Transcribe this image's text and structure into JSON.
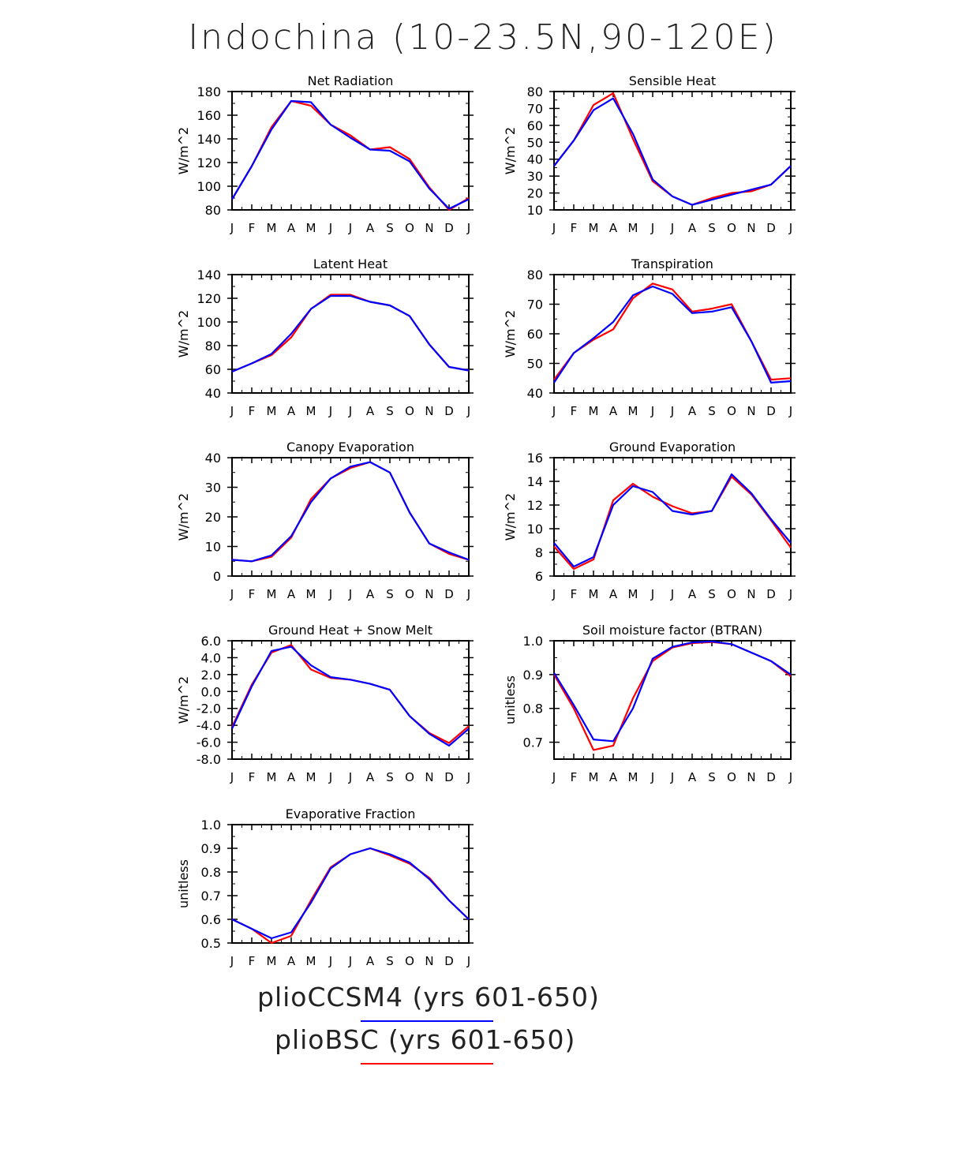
{
  "title": "Indochina (10-23.5N,90-120E)",
  "colors": {
    "pliocbsc": "#ff0000",
    "plioccsm4": "#0000ff"
  },
  "legend": [
    {
      "label": "plioCCSM4 (yrs 601-650)",
      "color": "#0000ff"
    },
    {
      "label": "plioBSC (yrs 601-650)",
      "color": "#ff0000"
    }
  ],
  "chart_data": [
    {
      "type": "line",
      "title": "Net Radiation",
      "ylabel": "W/m^2",
      "x": [
        "J",
        "F",
        "M",
        "A",
        "M",
        "J",
        "J",
        "A",
        "S",
        "O",
        "N",
        "D",
        "J"
      ],
      "ylim": [
        80,
        180
      ],
      "yticks": [
        "80",
        "100",
        "120",
        "140",
        "160",
        "180"
      ],
      "series": [
        {
          "name": "plioBSC (yrs 601-650)",
          "color": "#ff0000",
          "values": [
            89,
            117,
            150,
            172,
            168,
            152,
            143,
            131,
            133,
            123,
            99,
            80,
            90
          ]
        },
        {
          "name": "plioCCSM4 (yrs 601-650)",
          "color": "#0000ff",
          "values": [
            89,
            117,
            148,
            172,
            171,
            152,
            141,
            131,
            130,
            121,
            98,
            81,
            89
          ]
        }
      ]
    },
    {
      "type": "line",
      "title": "Sensible Heat",
      "ylabel": "W/m^2",
      "x": [
        "J",
        "F",
        "M",
        "A",
        "M",
        "J",
        "J",
        "A",
        "S",
        "O",
        "N",
        "D",
        "J"
      ],
      "ylim": [
        10,
        80
      ],
      "yticks": [
        "10",
        "20",
        "30",
        "40",
        "50",
        "60",
        "70",
        "80"
      ],
      "series": [
        {
          "name": "plioBSC (yrs 601-650)",
          "color": "#ff0000",
          "values": [
            36,
            51,
            72,
            79,
            52,
            27,
            18,
            13,
            17,
            20,
            21,
            25,
            36
          ]
        },
        {
          "name": "plioCCSM4 (yrs 601-650)",
          "color": "#0000ff",
          "values": [
            36,
            51,
            69,
            76,
            55,
            28,
            18,
            13,
            16,
            19,
            22,
            25,
            36
          ]
        }
      ]
    },
    {
      "type": "line",
      "title": "Latent Heat",
      "ylabel": "W/m^2",
      "x": [
        "J",
        "F",
        "M",
        "A",
        "M",
        "J",
        "J",
        "A",
        "S",
        "O",
        "N",
        "D",
        "J"
      ],
      "ylim": [
        40,
        140
      ],
      "yticks": [
        "40",
        "60",
        "80",
        "100",
        "120",
        "140"
      ],
      "series": [
        {
          "name": "plioBSC (yrs 601-650)",
          "color": "#ff0000",
          "values": [
            58,
            65,
            72,
            87,
            111,
            123,
            123,
            117,
            114,
            105,
            81,
            62,
            59
          ]
        },
        {
          "name": "plioCCSM4 (yrs 601-650)",
          "color": "#0000ff",
          "values": [
            58,
            65,
            73,
            90,
            111,
            122,
            122,
            117,
            114,
            105,
            81,
            62,
            59
          ]
        }
      ]
    },
    {
      "type": "line",
      "title": "Transpiration",
      "ylabel": "W/m^2",
      "x": [
        "J",
        "F",
        "M",
        "A",
        "M",
        "J",
        "J",
        "A",
        "S",
        "O",
        "N",
        "D",
        "J"
      ],
      "ylim": [
        40,
        80
      ],
      "yticks": [
        "40",
        "50",
        "60",
        "70",
        "80"
      ],
      "series": [
        {
          "name": "plioBSC (yrs 601-650)",
          "color": "#ff0000",
          "values": [
            44.5,
            53.5,
            58,
            61.5,
            72,
            77,
            75,
            67.5,
            68.5,
            70,
            57.5,
            44.5,
            45
          ]
        },
        {
          "name": "plioCCSM4 (yrs 601-650)",
          "color": "#0000ff",
          "values": [
            43.5,
            53.5,
            58.5,
            64,
            73,
            76,
            73.5,
            67,
            67.5,
            69,
            57.5,
            43.5,
            44
          ]
        }
      ]
    },
    {
      "type": "line",
      "title": "Canopy Evaporation",
      "ylabel": "W/m^2",
      "x": [
        "J",
        "F",
        "M",
        "A",
        "M",
        "J",
        "J",
        "A",
        "S",
        "O",
        "N",
        "D",
        "J"
      ],
      "ylim": [
        0,
        40
      ],
      "yticks": [
        "0",
        "10",
        "20",
        "30",
        "40"
      ],
      "series": [
        {
          "name": "plioBSC (yrs 601-650)",
          "color": "#ff0000",
          "values": [
            5.5,
            5,
            6.5,
            13,
            26,
            33,
            36.5,
            38.5,
            35,
            21.5,
            11,
            7.5,
            5.5
          ]
        },
        {
          "name": "plioCCSM4 (yrs 601-650)",
          "color": "#0000ff",
          "values": [
            5.5,
            5,
            7,
            13.5,
            25,
            33,
            37,
            38.5,
            35,
            21.5,
            11,
            8,
            5.5
          ]
        }
      ]
    },
    {
      "type": "line",
      "title": "Ground Evaporation",
      "ylabel": "W/m^2",
      "x": [
        "J",
        "F",
        "M",
        "A",
        "M",
        "J",
        "J",
        "A",
        "S",
        "O",
        "N",
        "D",
        "J"
      ],
      "ylim": [
        6,
        16
      ],
      "yticks": [
        "6",
        "8",
        "10",
        "12",
        "14",
        "16"
      ],
      "series": [
        {
          "name": "plioBSC (yrs 601-650)",
          "color": "#ff0000",
          "values": [
            8.5,
            6.6,
            7.4,
            12.4,
            13.8,
            12.7,
            11.9,
            11.3,
            11.5,
            14.4,
            12.9,
            10.7,
            8.4
          ]
        },
        {
          "name": "plioCCSM4 (yrs 601-650)",
          "color": "#0000ff",
          "values": [
            8.8,
            6.8,
            7.6,
            12,
            13.6,
            13.1,
            11.5,
            11.2,
            11.5,
            14.6,
            13,
            10.8,
            8.8
          ]
        }
      ]
    },
    {
      "type": "line",
      "title": "Ground Heat + Snow Melt",
      "ylabel": "W/m^2",
      "x": [
        "J",
        "F",
        "M",
        "A",
        "M",
        "J",
        "J",
        "A",
        "S",
        "O",
        "N",
        "D",
        "J"
      ],
      "ylim": [
        -8,
        6
      ],
      "yticks": [
        "-8.0",
        "-6.0",
        "-4.0",
        "-2.0",
        "0.0",
        "2.0",
        "4.0",
        "6.0"
      ],
      "series": [
        {
          "name": "plioBSC (yrs 601-650)",
          "color": "#ff0000",
          "values": [
            -4.2,
            0.8,
            4.6,
            5.5,
            2.6,
            1.6,
            1.4,
            0.9,
            0.2,
            -2.9,
            -4.9,
            -6.1,
            -4.1
          ]
        },
        {
          "name": "plioCCSM4 (yrs 601-650)",
          "color": "#0000ff",
          "values": [
            -4.4,
            0.6,
            4.8,
            5.3,
            3.1,
            1.7,
            1.4,
            0.9,
            0.2,
            -2.9,
            -5,
            -6.4,
            -4.4
          ]
        }
      ]
    },
    {
      "type": "line",
      "title": "Soil moisture factor (BTRAN)",
      "ylabel": "unitless",
      "x": [
        "J",
        "F",
        "M",
        "A",
        "M",
        "J",
        "J",
        "A",
        "S",
        "O",
        "N",
        "D",
        "J"
      ],
      "ylim": [
        0.65,
        1.0
      ],
      "yticks": [
        "0.7",
        "0.8",
        "0.9",
        "1.0"
      ],
      "series": [
        {
          "name": "plioBSC (yrs 601-650)",
          "color": "#ff0000",
          "values": [
            0.9,
            0.8,
            0.677,
            0.69,
            0.83,
            0.94,
            0.98,
            0.993,
            0.996,
            0.99,
            0.965,
            0.94,
            0.895
          ]
        },
        {
          "name": "plioCCSM4 (yrs 601-650)",
          "color": "#0000ff",
          "values": [
            0.905,
            0.81,
            0.708,
            0.703,
            0.8,
            0.947,
            0.982,
            0.995,
            0.998,
            0.99,
            0.965,
            0.94,
            0.9
          ]
        }
      ]
    },
    {
      "type": "line",
      "title": "Evaporative Fraction",
      "ylabel": "unitless",
      "x": [
        "J",
        "F",
        "M",
        "A",
        "M",
        "J",
        "J",
        "A",
        "S",
        "O",
        "N",
        "D",
        "J"
      ],
      "ylim": [
        0.5,
        1.0
      ],
      "yticks": [
        "0.5",
        "0.6",
        "0.7",
        "0.8",
        "0.9",
        "1.0"
      ],
      "series": [
        {
          "name": "plioBSC (yrs 601-650)",
          "color": "#ff0000",
          "values": [
            0.6,
            0.56,
            0.5,
            0.53,
            0.68,
            0.82,
            0.875,
            0.9,
            0.87,
            0.835,
            0.775,
            0.68,
            0.6
          ]
        },
        {
          "name": "plioCCSM4 (yrs 601-650)",
          "color": "#0000ff",
          "values": [
            0.6,
            0.56,
            0.52,
            0.545,
            0.67,
            0.815,
            0.875,
            0.9,
            0.875,
            0.84,
            0.77,
            0.68,
            0.6
          ]
        }
      ]
    }
  ]
}
